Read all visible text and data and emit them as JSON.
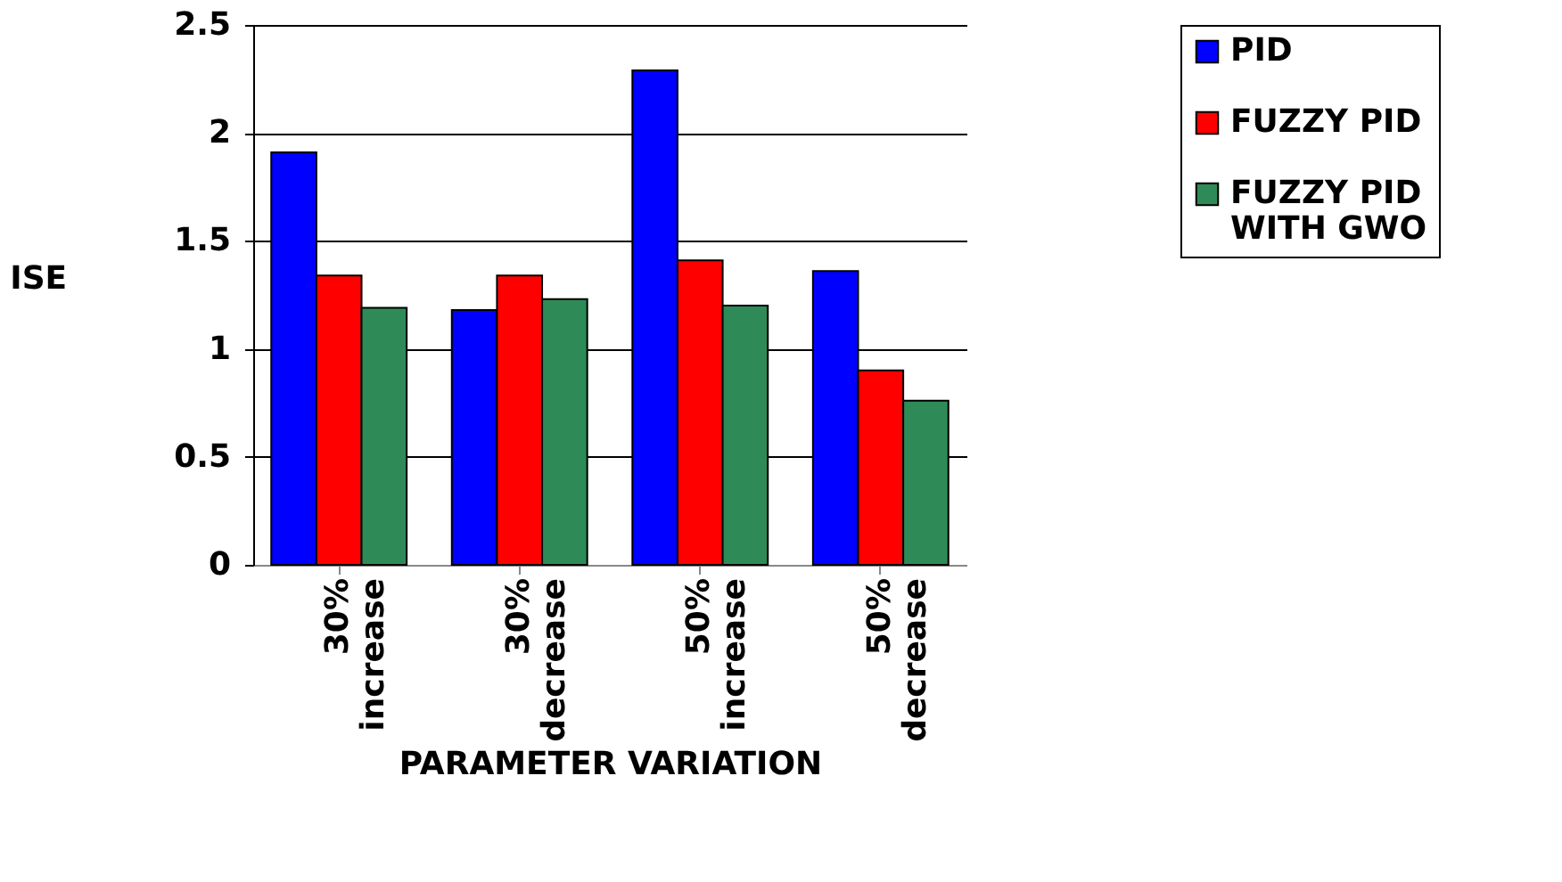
{
  "chart_data": {
    "type": "bar",
    "xlabel": "PARAMETER VARIATION",
    "ylabel": "ISE",
    "categories": [
      "30% increase",
      "30% decrease",
      "50% increase",
      "50% decrease"
    ],
    "series": [
      {
        "name": "PID",
        "color": "#0000ff",
        "values": [
          1.91,
          1.18,
          2.29,
          1.36
        ]
      },
      {
        "name": "FUZZY PID",
        "color": "#ff0000",
        "values": [
          1.34,
          1.34,
          1.41,
          0.9
        ]
      },
      {
        "name": "FUZZY PID WITH GWO",
        "color": "#2e8b57",
        "values": [
          1.19,
          1.23,
          1.2,
          0.76
        ]
      }
    ],
    "ylim": [
      0,
      2.5
    ],
    "yticks": [
      0,
      0.5,
      1,
      1.5,
      2,
      2.5
    ],
    "grid": "y",
    "legend": "top right"
  }
}
